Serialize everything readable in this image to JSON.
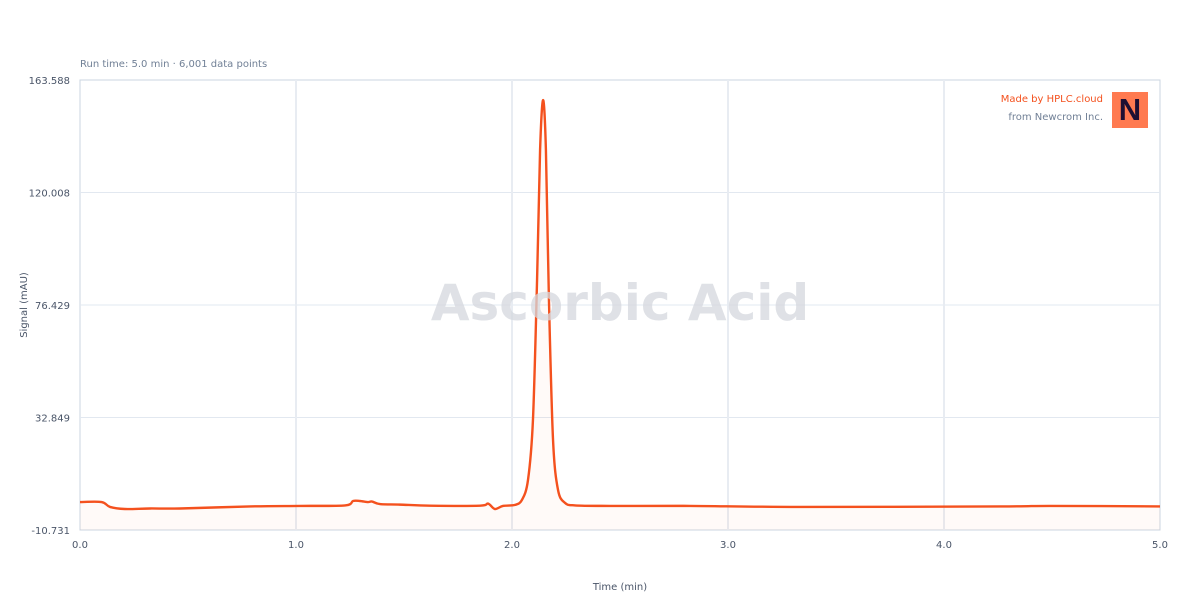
{
  "chart_data": {
    "type": "line",
    "subtitle": "Run time: 5.0 min · 6,001 data points",
    "watermark": "Ascorbic Acid",
    "xlabel": "Time (min)",
    "ylabel": "Signal (mAU)",
    "xlim": [
      0,
      5
    ],
    "ylim": [
      -10.731,
      163.588
    ],
    "xticks": [
      "0.0",
      "1.0",
      "2.0",
      "3.0",
      "4.0",
      "5.0"
    ],
    "yticks": [
      "-10.731",
      "32.849",
      "76.429",
      "120.008",
      "163.588"
    ],
    "grid": true,
    "color": "#f4511e",
    "x": [
      0,
      0.1,
      0.139,
      0.208,
      0.324,
      0.463,
      0.787,
      1.019,
      1.227,
      1.264,
      1.296,
      1.333,
      1.352,
      1.389,
      1.481,
      1.62,
      1.852,
      1.889,
      1.921,
      1.958,
      2.014,
      2.046,
      2.074,
      2.097,
      2.116,
      2.13,
      2.144,
      2.157,
      2.171,
      2.19,
      2.213,
      2.245,
      2.292,
      2.454,
      2.824,
      3.33,
      4.26,
      4.49,
      5.0
    ],
    "y": [
      0.1,
      0.1,
      -1.8,
      -2.6,
      -2.4,
      -2.4,
      -1.6,
      -1.4,
      -1.2,
      0.5,
      0.5,
      0.1,
      0.3,
      -0.7,
      -0.9,
      -1.3,
      -1.3,
      -0.5,
      -2.6,
      -1.4,
      -1.0,
      0.9,
      8.6,
      31.9,
      86,
      136.5,
      155.8,
      136.5,
      78.4,
      24.1,
      4.8,
      -0.2,
      -1.2,
      -1.4,
      -1.4,
      -1.8,
      -1.6,
      -1.4,
      -1.6
    ]
  },
  "branding": {
    "line1": "Made by HPLC.cloud",
    "line2": "from Newcrom Inc.",
    "logo_letter": "N",
    "logo_color": "#ff7a50"
  }
}
